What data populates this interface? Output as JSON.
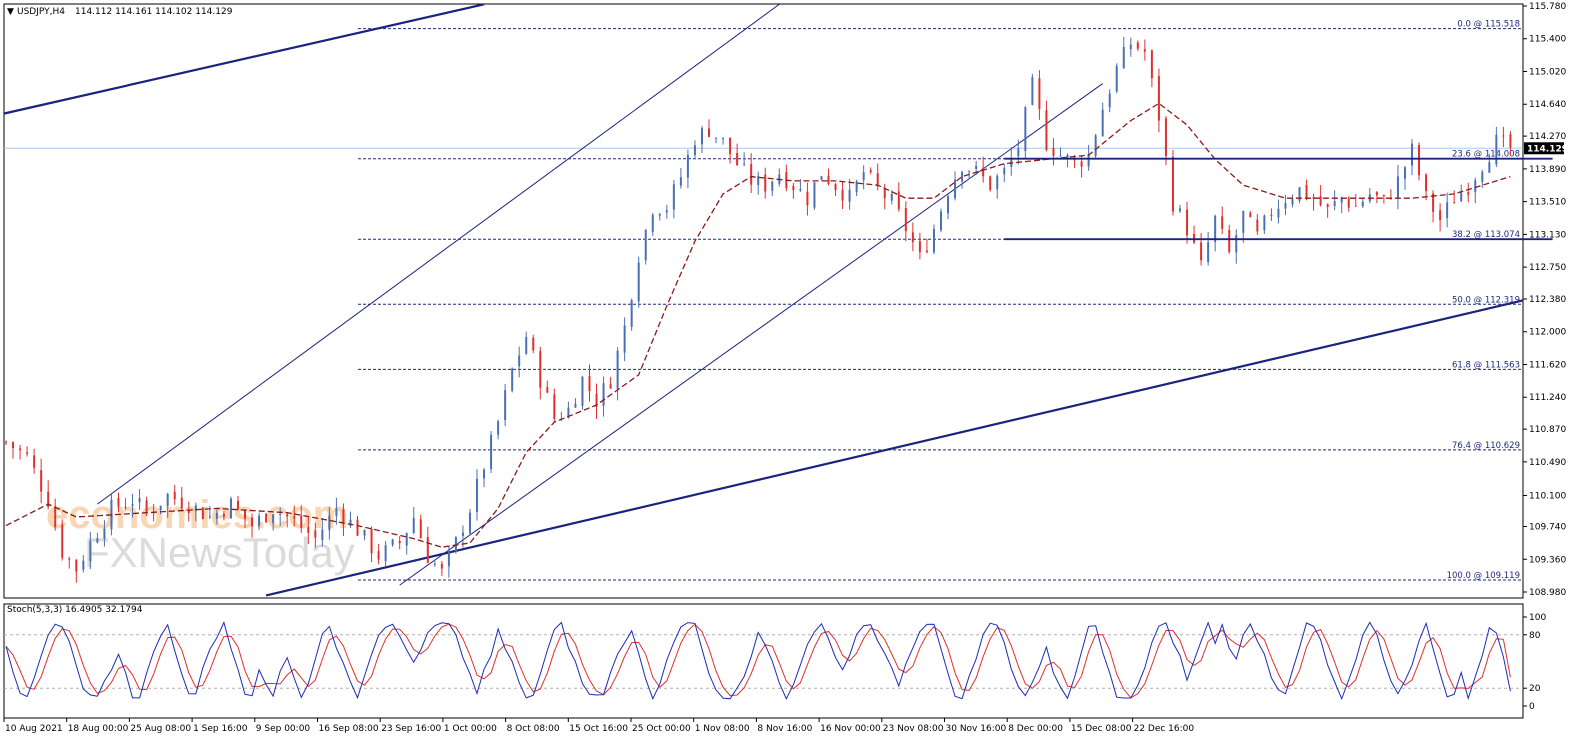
{
  "header": {
    "symbol": "USDJPY,H4",
    "ohlc": "114.112 114.161 114.102 114.129"
  },
  "watermark": {
    "line1": "economies.com",
    "line2": "FXNewsToday"
  },
  "colors": {
    "bull": "#4a6fb5",
    "bear": "#e0302d",
    "ma": "#8b1a1a",
    "channel": "#1a237e",
    "fib": "#1f2a7a",
    "stoch_main": "#1c2bb8",
    "stoch_signal": "#e0302d",
    "current_price_line": "#a9c8e8",
    "price_tag_bg": "#000000"
  },
  "chart_data": [
    {
      "type": "line",
      "title": "USDJPY,H4",
      "ylim": [
        108.98,
        115.78
      ],
      "y_ticks": [
        "115.780",
        "115.400",
        "115.020",
        "114.640",
        "114.270",
        "113.890",
        "113.510",
        "113.130",
        "112.750",
        "112.380",
        "112.000",
        "111.620",
        "111.240",
        "110.870",
        "110.490",
        "110.100",
        "109.740",
        "109.360",
        "108.980"
      ],
      "x_labels": [
        "10 Aug 2021",
        "18 Aug 00:00",
        "25 Aug 08:00",
        "1 Sep 16:00",
        "9 Sep 00:00",
        "16 Sep 08:00",
        "23 Sep 16:00",
        "1 Oct 00:00",
        "8 Oct 08:00",
        "15 Oct 16:00",
        "25 Oct 00:00",
        "1 Nov 08:00",
        "8 Nov 16:00",
        "16 Nov 00:00",
        "23 Nov 08:00",
        "30 Nov 16:00",
        "8 Dec 00:00",
        "15 Dec 08:00",
        "22 Dec 16:00"
      ],
      "current_price": 114.129,
      "current_price_label": "114.129",
      "fibonacci": [
        {
          "label": "0.0 @ 115.518",
          "value": 115.518
        },
        {
          "label": "23.6 @ 114.008",
          "value": 114.008
        },
        {
          "label": "38.2 @ 113.074",
          "value": 113.074
        },
        {
          "label": "50.0 @ 112.319",
          "value": 112.319
        },
        {
          "label": "61.8 @ 111.563",
          "value": 111.563
        },
        {
          "label": "76.4 @ 110.629",
          "value": 110.629
        },
        {
          "label": "100.0 @ 109.119",
          "value": 109.119
        }
      ],
      "close_path": [
        [
          0,
          110.72
        ],
        [
          3,
          110.55
        ],
        [
          6,
          110.05
        ],
        [
          8,
          109.45
        ],
        [
          10,
          109.25
        ],
        [
          12,
          109.55
        ],
        [
          15,
          109.95
        ],
        [
          18,
          110.05
        ],
        [
          20,
          109.9
        ],
        [
          23,
          110.1
        ],
        [
          26,
          110.0
        ],
        [
          29,
          109.85
        ],
        [
          32,
          110.0
        ],
        [
          35,
          109.75
        ],
        [
          38,
          109.95
        ],
        [
          41,
          109.8
        ],
        [
          44,
          109.6
        ],
        [
          47,
          109.95
        ],
        [
          50,
          109.7
        ],
        [
          53,
          109.4
        ],
        [
          56,
          109.55
        ],
        [
          58,
          109.85
        ],
        [
          60,
          109.4
        ],
        [
          62,
          109.2
        ],
        [
          64,
          109.55
        ],
        [
          66,
          109.95
        ],
        [
          68,
          110.45
        ],
        [
          70,
          110.95
        ],
        [
          72,
          111.55
        ],
        [
          74,
          111.95
        ],
        [
          76,
          111.45
        ],
        [
          78,
          111.0
        ],
        [
          80,
          111.1
        ],
        [
          82,
          111.45
        ],
        [
          84,
          111.2
        ],
        [
          86,
          111.45
        ],
        [
          88,
          112.05
        ],
        [
          90,
          112.9
        ],
        [
          92,
          113.45
        ],
        [
          94,
          113.45
        ],
        [
          96,
          113.8
        ],
        [
          98,
          114.25
        ],
        [
          100,
          114.35
        ],
        [
          102,
          114.2
        ],
        [
          104,
          113.95
        ],
        [
          106,
          113.75
        ],
        [
          108,
          113.7
        ],
        [
          110,
          113.85
        ],
        [
          112,
          113.7
        ],
        [
          114,
          113.55
        ],
        [
          116,
          113.85
        ],
        [
          118,
          113.7
        ],
        [
          120,
          113.55
        ],
        [
          122,
          113.85
        ],
        [
          124,
          113.65
        ],
        [
          126,
          113.5
        ],
        [
          128,
          113.2
        ],
        [
          130,
          112.85
        ],
        [
          132,
          113.2
        ],
        [
          134,
          113.65
        ],
        [
          136,
          113.95
        ],
        [
          138,
          113.85
        ],
        [
          140,
          113.7
        ],
        [
          142,
          113.85
        ],
        [
          144,
          114.15
        ],
        [
          146,
          114.85
        ],
        [
          148,
          114.2
        ],
        [
          150,
          114.05
        ],
        [
          152,
          113.95
        ],
        [
          154,
          114.05
        ],
        [
          156,
          114.6
        ],
        [
          158,
          115.05
        ],
        [
          160,
          115.35
        ],
        [
          162,
          115.25
        ],
        [
          164,
          114.5
        ],
        [
          166,
          113.5
        ],
        [
          168,
          113.2
        ],
        [
          170,
          112.75
        ],
        [
          172,
          113.3
        ],
        [
          174,
          112.9
        ],
        [
          176,
          113.35
        ],
        [
          178,
          113.1
        ],
        [
          180,
          113.4
        ],
        [
          182,
          113.55
        ],
        [
          184,
          113.65
        ],
        [
          186,
          113.55
        ],
        [
          188,
          113.4
        ],
        [
          190,
          113.55
        ],
        [
          192,
          113.45
        ],
        [
          194,
          113.6
        ],
        [
          196,
          113.5
        ],
        [
          198,
          113.75
        ],
        [
          200,
          114.1
        ],
        [
          202,
          113.55
        ],
        [
          204,
          113.3
        ],
        [
          206,
          113.55
        ],
        [
          208,
          113.7
        ],
        [
          210,
          113.95
        ],
        [
          212,
          114.2
        ],
        [
          214,
          114.13
        ]
      ],
      "moving_average_path": [
        [
          0,
          109.75
        ],
        [
          6,
          110.0
        ],
        [
          10,
          109.85
        ],
        [
          20,
          109.9
        ],
        [
          30,
          109.95
        ],
        [
          40,
          109.9
        ],
        [
          50,
          109.75
        ],
        [
          58,
          109.6
        ],
        [
          62,
          109.5
        ],
        [
          66,
          109.55
        ],
        [
          70,
          109.95
        ],
        [
          74,
          110.6
        ],
        [
          78,
          110.95
        ],
        [
          84,
          111.15
        ],
        [
          90,
          111.5
        ],
        [
          94,
          112.3
        ],
        [
          98,
          113.05
        ],
        [
          102,
          113.6
        ],
        [
          106,
          113.8
        ],
        [
          112,
          113.75
        ],
        [
          118,
          113.75
        ],
        [
          124,
          113.7
        ],
        [
          128,
          113.55
        ],
        [
          132,
          113.55
        ],
        [
          136,
          113.8
        ],
        [
          142,
          113.95
        ],
        [
          148,
          114.0
        ],
        [
          154,
          114.05
        ],
        [
          160,
          114.45
        ],
        [
          164,
          114.65
        ],
        [
          168,
          114.4
        ],
        [
          172,
          114.0
        ],
        [
          176,
          113.7
        ],
        [
          182,
          113.55
        ],
        [
          190,
          113.55
        ],
        [
          200,
          113.55
        ],
        [
          206,
          113.6
        ],
        [
          214,
          113.8
        ]
      ],
      "trend_lines": [
        {
          "from": [
            -2,
            114.5
          ],
          "to": [
            68,
            115.8
          ]
        },
        {
          "from": [
            37,
            108.94
          ],
          "to": [
            237,
            112.77
          ]
        },
        {
          "from": [
            13,
            110.0
          ],
          "to": [
            110,
            115.8
          ]
        },
        {
          "from": [
            56,
            109.06
          ],
          "to": [
            156,
            114.88
          ]
        }
      ],
      "box": {
        "top": 114.008,
        "bottom": 113.074,
        "x_start": 142,
        "x_end": 220
      }
    },
    {
      "type": "line",
      "title": "Stoch(5,3,3) 16.4905 32.1794",
      "ylim": [
        0,
        100
      ],
      "y_ticks": [
        "100",
        "80",
        "20",
        "0"
      ],
      "levels": [
        80,
        20
      ],
      "series": [
        {
          "name": "main",
          "value": 16.4905
        },
        {
          "name": "signal",
          "value": 32.1794
        }
      ]
    }
  ]
}
